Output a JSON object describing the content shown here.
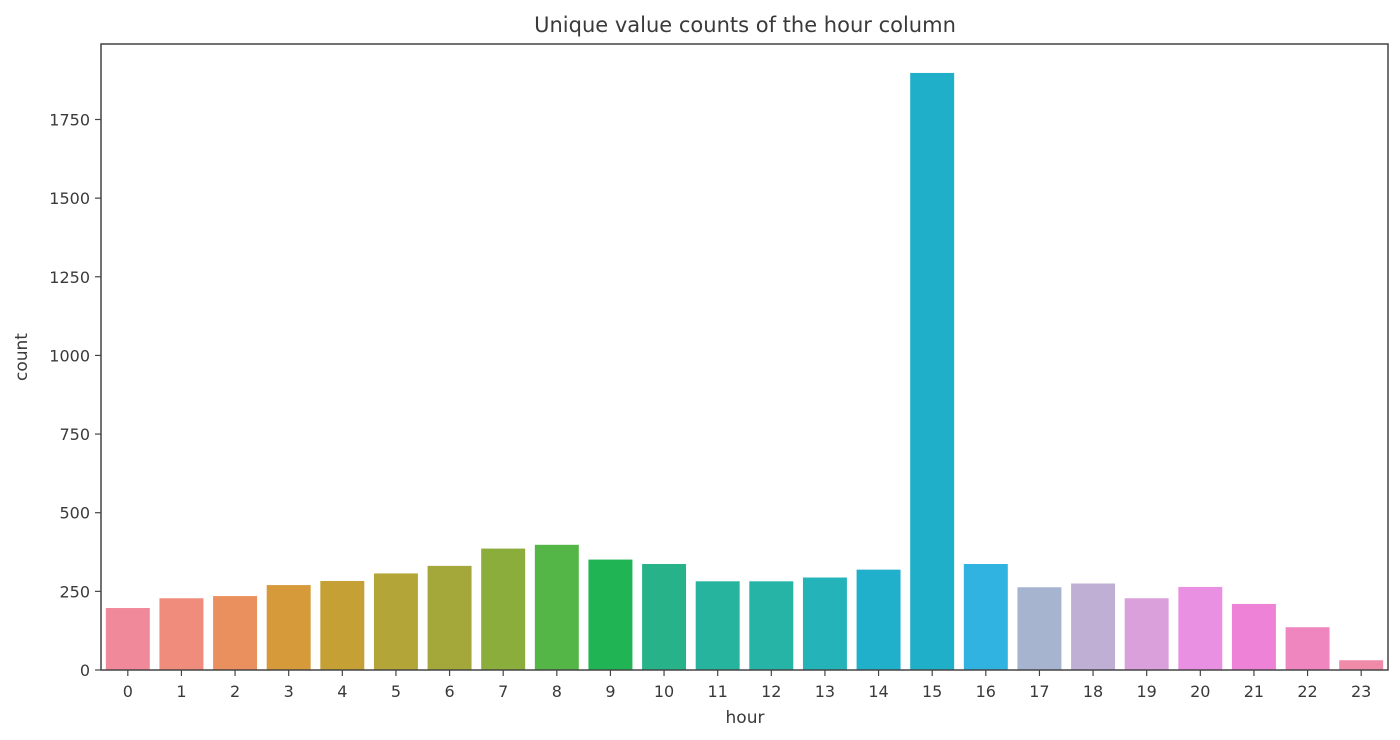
{
  "chart_data": {
    "type": "bar",
    "title": "Unique value counts of the hour column",
    "xlabel": "hour",
    "ylabel": "count",
    "categories": [
      "0",
      "1",
      "2",
      "3",
      "4",
      "5",
      "6",
      "7",
      "8",
      "9",
      "10",
      "11",
      "12",
      "13",
      "14",
      "15",
      "16",
      "17",
      "18",
      "19",
      "20",
      "21",
      "22",
      "23"
    ],
    "values": [
      197,
      228,
      235,
      270,
      283,
      307,
      331,
      386,
      398,
      351,
      337,
      282,
      282,
      294,
      319,
      1898,
      337,
      263,
      275,
      228,
      264,
      210,
      136,
      31
    ],
    "colors": [
      "#f08a9a",
      "#ef8c7b",
      "#ea8f5e",
      "#d79a3a",
      "#c5a035",
      "#b3a537",
      "#a4a83b",
      "#8aad3c",
      "#55b648",
      "#21b455",
      "#27b28a",
      "#27b49e",
      "#25b4a6",
      "#23b3b8",
      "#21b0cb",
      "#1fafc8",
      "#30b3e0",
      "#a7b4cf",
      "#c0afd5",
      "#d9a0db",
      "#ea90e2",
      "#ee82d6",
      "#ef86c0",
      "#f08aa9"
    ],
    "ylim": [
      0,
      1990
    ],
    "yticks": [
      0,
      250,
      500,
      750,
      1000,
      1250,
      1500,
      1750
    ],
    "grid": false,
    "legend": "none"
  }
}
